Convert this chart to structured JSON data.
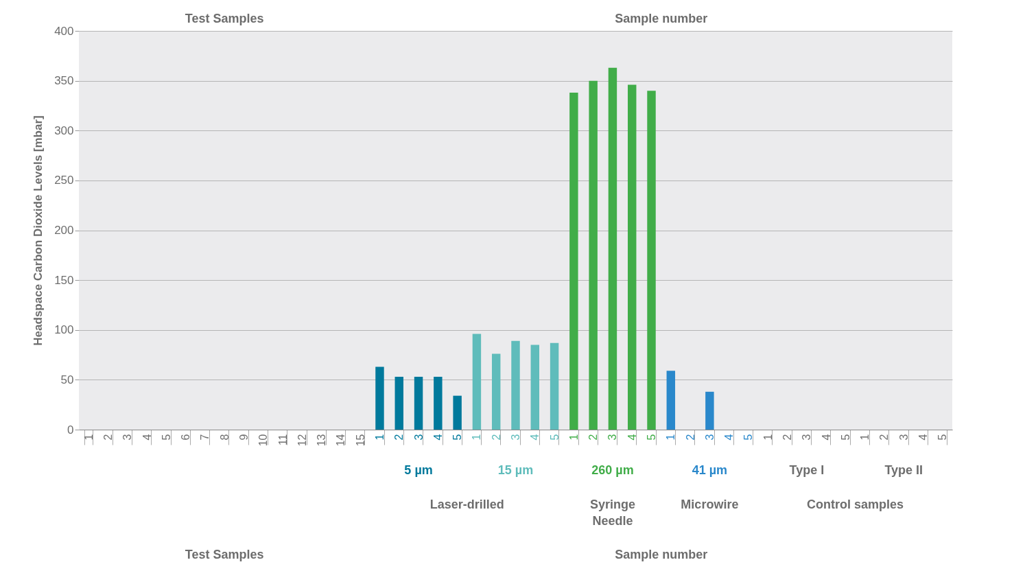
{
  "chart_data": {
    "type": "bar",
    "categories": [
      "1",
      "2",
      "3",
      "4",
      "5",
      "6",
      "7",
      "8",
      "9",
      "10",
      "11",
      "12",
      "13",
      "14",
      "15",
      "1",
      "2",
      "3",
      "4",
      "5",
      "1",
      "2",
      "3",
      "4",
      "5",
      "1",
      "2",
      "3",
      "4",
      "5",
      "1",
      "2",
      "3",
      "4",
      "5",
      "1",
      "2",
      "3",
      "4",
      "5",
      "1",
      "2",
      "3",
      "4",
      "5"
    ],
    "values": [
      null,
      null,
      null,
      null,
      null,
      null,
      null,
      null,
      null,
      null,
      null,
      null,
      null,
      null,
      null,
      63,
      53,
      53,
      53,
      34,
      96,
      76,
      89,
      85,
      87,
      338,
      350,
      363,
      346,
      340,
      59,
      null,
      38,
      null,
      null,
      null,
      null,
      null,
      null,
      null,
      null,
      null,
      null,
      null,
      null
    ],
    "colors": [
      "#707070",
      "#707070",
      "#707070",
      "#707070",
      "#707070",
      "#707070",
      "#707070",
      "#707070",
      "#707070",
      "#707070",
      "#707070",
      "#707070",
      "#707070",
      "#707070",
      "#707070",
      "#00799c",
      "#00799c",
      "#00799c",
      "#00799c",
      "#00799c",
      "#5fbcbb",
      "#5fbcbb",
      "#5fbcbb",
      "#5fbcbb",
      "#5fbcbb",
      "#41ad49",
      "#41ad49",
      "#41ad49",
      "#41ad49",
      "#41ad49",
      "#2a88cb",
      "#2a88cb",
      "#2a88cb",
      "#2a88cb",
      "#2a88cb",
      "#707070",
      "#707070",
      "#707070",
      "#707070",
      "#707070",
      "#707070",
      "#707070",
      "#707070",
      "#707070",
      "#707070"
    ],
    "ylabel": "Headspace Carbon Dioxide Levels [mbar]",
    "ylim": [
      0,
      400
    ],
    "yticks": [
      0,
      50,
      100,
      150,
      200,
      250,
      300,
      350,
      400
    ],
    "grid": "y",
    "annotations": [
      "Test Samples",
      "Sample number",
      "5 µm",
      "15 µm",
      "260 µm",
      "41 µm",
      "Type I",
      "Type II",
      "Laser-drilled",
      "Syringe\nNeedle",
      "Microwire",
      "Control samples",
      "Test Samples",
      "Sample number"
    ]
  }
}
